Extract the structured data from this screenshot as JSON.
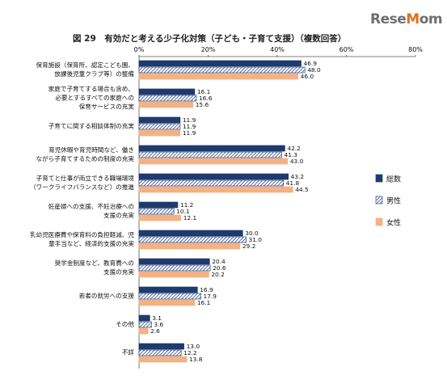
{
  "logo": {
    "text": "ReseMom"
  },
  "chart_data": {
    "type": "bar",
    "orientation": "horizontal",
    "title": "図 29　有効だと考える少子化対策（子ども・子育て支援）（複数回答）",
    "xlim": [
      0,
      80
    ],
    "x_ticks": [
      "0%",
      "20%",
      "40%",
      "60%",
      "80%"
    ],
    "grid": false,
    "legend_position": "right",
    "categories": [
      [
        "保育施設（保育所、認定こども園、",
        "放課後児童クラブ等）の整備"
      ],
      [
        "家庭で子育てする場合も含め、",
        "必要とするすべての家庭への",
        "保育サービスの充実"
      ],
      [
        "子育てに関する相談体制の充実"
      ],
      [
        "育児休暇や育児時間など、働き",
        "ながら子育てするための制度の充実"
      ],
      [
        "子育てと仕事が両立できる職場環境",
        "（ワークライフバランスなど）の推進"
      ],
      [
        "妊産婦への支援、不妊治療への",
        "支援の充実"
      ],
      [
        "乳幼児医療費や保育料の負担軽減、児",
        "童手当など、経済的支援の充実"
      ],
      [
        "奨学金制度など、教育費への",
        "支援の充実"
      ],
      [
        "若者の就労への支援"
      ],
      [
        "その他"
      ],
      [
        "不詳"
      ]
    ],
    "series": [
      {
        "name": "総数",
        "color": "#1f3a6d",
        "pattern": "solid",
        "values": [
          46.9,
          16.1,
          11.9,
          42.2,
          43.2,
          11.2,
          30.0,
          20.4,
          16.9,
          3.1,
          13.0
        ],
        "labels": [
          "46.9",
          "16.1",
          "11.9",
          "42.2",
          "43.2",
          "11.2",
          "30.0",
          "20.4",
          "16.9",
          "3.1",
          "13.0"
        ]
      },
      {
        "name": "男性",
        "color": "#2e4a8a",
        "pattern": "hatch",
        "values": [
          48.0,
          16.6,
          11.9,
          41.3,
          41.8,
          10.1,
          31.0,
          20.6,
          17.9,
          3.6,
          12.2
        ],
        "labels": [
          "48.0",
          "16.6",
          "11.9",
          "41.3",
          "41.8",
          "10.1",
          "31.0",
          "20.6",
          "17.9",
          "3.6",
          "12.2"
        ]
      },
      {
        "name": "女性",
        "color": "#f4b183",
        "pattern": "solid",
        "values": [
          46.0,
          15.6,
          11.9,
          43.0,
          44.5,
          12.1,
          29.2,
          20.2,
          16.1,
          2.6,
          13.8
        ],
        "labels": [
          "46.0",
          "15.6",
          "11.9",
          "43.0",
          "44.5",
          "12.1",
          "29.2",
          "20.2",
          "16.1",
          "2.6",
          "13.8"
        ]
      }
    ]
  }
}
